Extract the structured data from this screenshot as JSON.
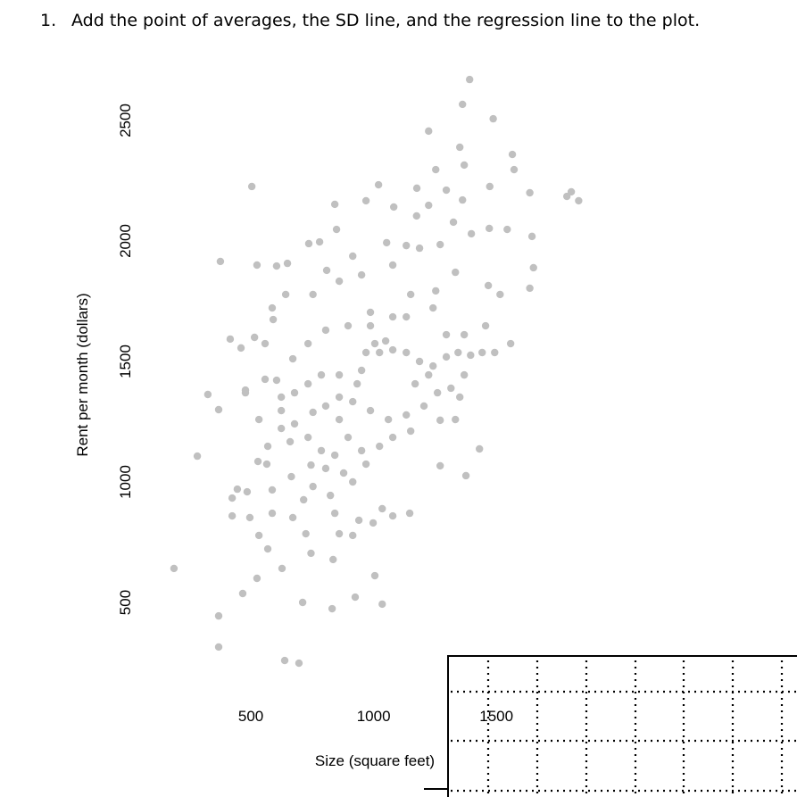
{
  "question": {
    "number": "1.",
    "text": "Add the point of averages, the SD line, and the regression line to the plot."
  },
  "chart_data": {
    "type": "scatter",
    "x_label": "Size (square feet)",
    "y_label": "Rent per month (dollars)",
    "xlim": [
      150,
      1900
    ],
    "ylim": [
      200,
      2700
    ],
    "xticks": [
      500,
      1000,
      1500
    ],
    "yticks": [
      500,
      1000,
      1500,
      2000,
      2500
    ],
    "grid": false,
    "color": "#c0c0c0",
    "x": [
      187,
      369,
      369,
      282,
      325,
      369,
      376,
      504,
      525,
      605,
      638,
      696,
      711,
      831,
      925,
      1035,
      1005,
      835,
      1391,
      1362,
      1487,
      1224,
      1351,
      1565,
      1787,
      1835,
      1805,
      1572,
      1636,
      1651,
      1636,
      1558,
      1431,
      1376,
      1271,
      1147,
      998,
      940,
      842,
      627,
      525,
      467,
      424,
      445,
      485,
      587,
      565,
      529,
      665,
      745,
      724,
      969,
      1020,
      1176,
      1175,
      1082,
      842,
      736,
      780,
      849,
      915,
      1053,
      1133,
      1187,
      1271,
      1325,
      1398,
      1471,
      1544,
      1645,
      1362,
      1473,
      1224,
      1296,
      1253,
      1369,
      809,
      753,
      860,
      951,
      1078,
      1151,
      1253,
      1333,
      1467,
      1515,
      1242,
      1133,
      1078,
      987,
      896,
      805,
      733,
      671,
      605,
      558,
      478,
      416,
      460,
      515,
      558,
      587,
      591,
      642,
      649,
      987,
      1005,
      1049,
      1024,
      969,
      1078,
      1133,
      1187,
      1242,
      1296,
      1344,
      1395,
      1369,
      1315,
      1260,
      1205,
      1133,
      1060,
      987,
      915,
      860,
      805,
      753,
      678,
      624,
      569,
      660,
      733,
      787,
      842,
      896,
      951,
      1024,
      1078,
      1151,
      933,
      860,
      787,
      733,
      678,
      624,
      951,
      1169,
      1224,
      1296,
      1369,
      1442,
      1493,
      1456,
      1333,
      1271,
      1351,
      860,
      805,
      753,
      824,
      915,
      969,
      878,
      715,
      671,
      587,
      533,
      496,
      424,
      1035,
      1078,
      860,
      915,
      745,
      569,
      478,
      624,
      533
    ],
    "y": [
      641,
      444,
      315,
      1107,
      1363,
      1300,
      1915,
      2226,
      1900,
      1896,
      259,
      248,
      500,
      474,
      522,
      493,
      611,
      678,
      2670,
      2567,
      2507,
      2456,
      2389,
      2359,
      2185,
      2167,
      2204,
      2296,
      2200,
      1889,
      1804,
      1574,
      1137,
      1026,
      1067,
      870,
      830,
      841,
      870,
      641,
      600,
      537,
      933,
      970,
      959,
      967,
      1074,
      1085,
      1022,
      1070,
      785,
      2167,
      2233,
      2219,
      2104,
      2141,
      2152,
      1989,
      1996,
      2048,
      1937,
      1993,
      1981,
      1970,
      1985,
      2078,
      2030,
      2052,
      2048,
      2019,
      2170,
      2226,
      2148,
      2211,
      2296,
      2315,
      1878,
      1778,
      1833,
      1859,
      1900,
      1778,
      1793,
      1870,
      1815,
      1778,
      1722,
      1685,
      1685,
      1704,
      1648,
      1630,
      1574,
      1511,
      1422,
      1426,
      1381,
      1593,
      1556,
      1600,
      1574,
      1722,
      1674,
      1778,
      1907,
      1648,
      1574,
      1585,
      1537,
      1537,
      1548,
      1537,
      1500,
      1481,
      1519,
      1537,
      1526,
      1444,
      1389,
      1370,
      1315,
      1278,
      1259,
      1296,
      1333,
      1352,
      1315,
      1289,
      1241,
      1222,
      1148,
      1167,
      1185,
      1130,
      1111,
      1185,
      1130,
      1148,
      1185,
      1211,
      1407,
      1444,
      1444,
      1407,
      1370,
      1352,
      1463,
      1407,
      1444,
      1611,
      1611,
      1537,
      1537,
      1648,
      1259,
      1256,
      1352,
      1259,
      1056,
      981,
      944,
      1000,
      1074,
      1037,
      926,
      852,
      870,
      778,
      852,
      859,
      889,
      859,
      785,
      778,
      704,
      722,
      1370,
      1296,
      1259
    ]
  }
}
